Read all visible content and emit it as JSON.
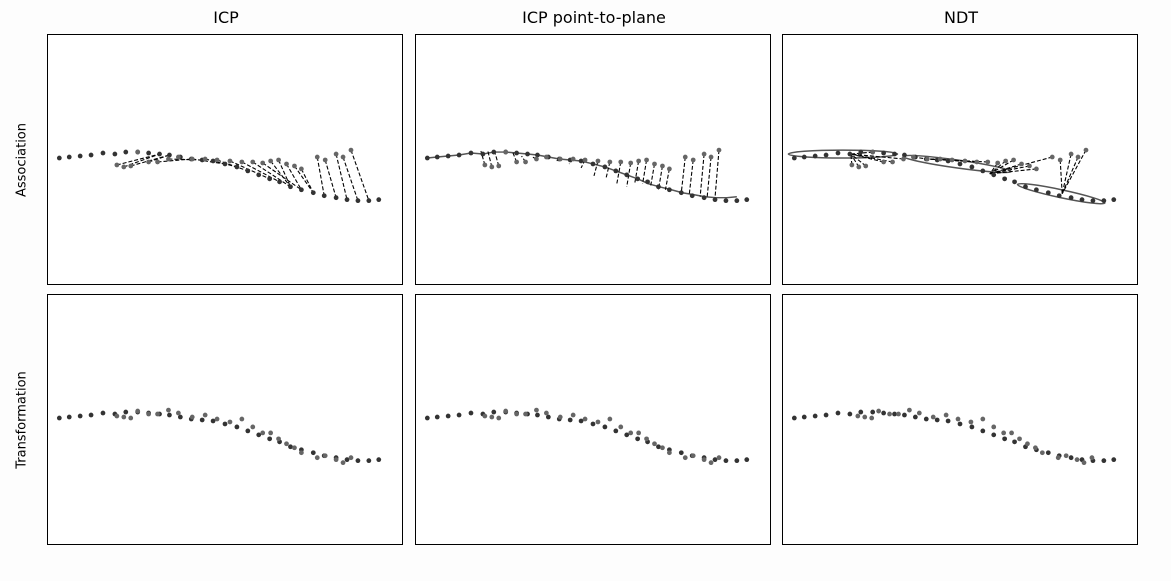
{
  "columns": [
    "ICP",
    "ICP point-to-plane",
    "NDT"
  ],
  "rows": [
    "Association",
    "Transformation"
  ],
  "colors": {
    "point_dark": "#333333",
    "point_light": "#666666",
    "line": "#000000",
    "surface": "#555555"
  }
}
